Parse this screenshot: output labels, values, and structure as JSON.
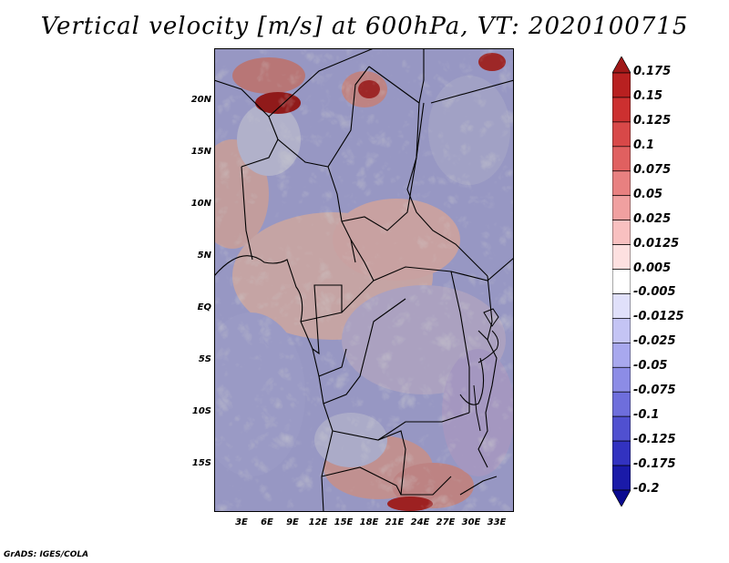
{
  "title": "Vertical velocity [m/s] at 600hPa, VT: 2020100715",
  "credit": "GrADS: IGES/COLA",
  "lat_labels": [
    "20N",
    "15N",
    "10N",
    "5N",
    "EQ",
    "5S",
    "10S",
    "15S"
  ],
  "lon_labels": [
    "3E",
    "6E",
    "9E",
    "12E",
    "15E",
    "18E",
    "21E",
    "24E",
    "27E",
    "30E",
    "33E"
  ],
  "colorbar": {
    "labels": [
      "0.175",
      "0.15",
      "0.125",
      "0.1",
      "0.075",
      "0.05",
      "0.025",
      "0.0125",
      "0.005",
      "-0.005",
      "-0.0125",
      "-0.025",
      "-0.05",
      "-0.075",
      "-0.1",
      "-0.125",
      "-0.175",
      "-0.2"
    ],
    "colors": [
      "#a01818",
      "#b82020",
      "#cc3030",
      "#d84848",
      "#e06060",
      "#e88080",
      "#f0a0a0",
      "#f8c0c0",
      "#fde0e0",
      "#ffffff",
      "#e0e0fa",
      "#c4c4f4",
      "#a8a8ee",
      "#8c8ce6",
      "#6e6edc",
      "#5050d0",
      "#3232c0",
      "#1a1aa8",
      "#0a0a90"
    ]
  },
  "map": {
    "lon_range": [
      0,
      35
    ],
    "lat_range": [
      -20,
      24.5
    ]
  }
}
